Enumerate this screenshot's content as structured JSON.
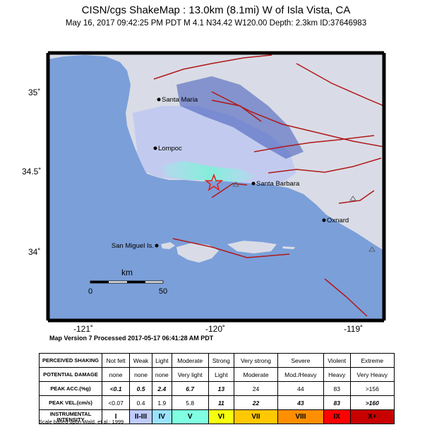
{
  "header": {
    "title": "CISN/cgs ShakeMap : 13.0km (8.1mi) W of Isla Vista, CA",
    "subtitle": "May 16, 2017 09:42:25 PM PDT   M 4.1   N34.42 W120.00   Depth: 2.3km   ID:37646983"
  },
  "map": {
    "lat_labels": [
      "35˚",
      "34.5˚",
      "34˚"
    ],
    "lon_labels": [
      "-121˚",
      "-120˚",
      "-119˚"
    ],
    "places": [
      "Santa Maria",
      "Lompoc",
      "Santa Barbara",
      "Oxnard",
      "San Miguel Is."
    ],
    "scale_bar": {
      "unit": "km",
      "start": "0",
      "end": "50"
    },
    "colors": {
      "ocean": "#7b9fd9",
      "epicenter": "#e02020",
      "fault": "#b01818",
      "land": "#d8dbe4"
    }
  },
  "version_note": "Map Version 7 Processed 2017-05-17 06:41:28 AM PDT",
  "legend": {
    "rows": [
      {
        "label": "PERCEIVED SHAKING",
        "cells": [
          "Not felt",
          "Weak",
          "Light",
          "Moderate",
          "Strong",
          "Very strong",
          "Severe",
          "Violent",
          "Extreme"
        ]
      },
      {
        "label": "POTENTIAL DAMAGE",
        "cells": [
          "none",
          "none",
          "none",
          "Very light",
          "Light",
          "Moderate",
          "Mod./Heavy",
          "Heavy",
          "Very Heavy"
        ]
      },
      {
        "label": "PEAK ACC.(%g)",
        "cells": [
          "<0.1",
          "0.5",
          "2.4",
          "6.7",
          "13",
          "24",
          "44",
          "83",
          ">156"
        ]
      },
      {
        "label": "PEAK VEL.(cm/s)",
        "cells": [
          "<0.07",
          "0.4",
          "1.9",
          "5.8",
          "11",
          "22",
          "43",
          "83",
          ">160"
        ]
      }
    ],
    "intensity_label": "INSTRUMENTAL INTENSITY",
    "intensity": [
      "I",
      "II-III",
      "IV",
      "V",
      "VI",
      "VII",
      "VIII",
      "IX",
      "X+"
    ],
    "intensity_colors": [
      "#ffffff",
      "#bfccff",
      "#9ae3ff",
      "#80ffe2",
      "#f7ff0f",
      "#ffc800",
      "#ff8f00",
      "#ff0000",
      "#c80000"
    ],
    "footnote": "Scale based upon Wald, et al.; 1999"
  }
}
